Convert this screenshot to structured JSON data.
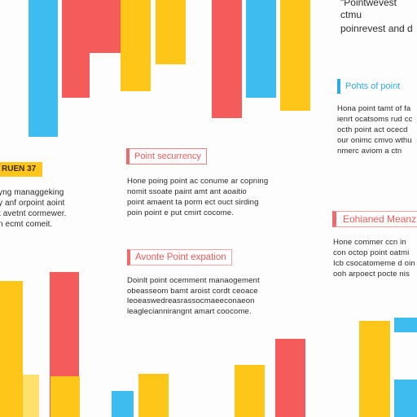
{
  "colors": {
    "red": "#f45c5c",
    "blue": "#3dbcf0",
    "yellow": "#ffc61a",
    "pale_yellow": "#ffe06a",
    "text": "#2a2a2a",
    "background": "#ffffff"
  },
  "top_right": {
    "line1": "\"Pointwevest ctmu",
    "line2": "poinrevest and d"
  },
  "right_upper": {
    "label": "Pohts of point",
    "lines": [
      "Hona point tamt of fa",
      "ienrt ocatsoms rud cc",
      "octh point act ocecd",
      "our onimc cmvo wthu",
      "nmerc aviom a ctn"
    ]
  },
  "left_middle": {
    "label": "RUEN 37",
    "lines": [
      "yng managgeking",
      "y anf orpoint aoint",
      "t avetnt cormewer.",
      "n ecmt comeit."
    ]
  },
  "center_upper": {
    "label": "Point securrency",
    "lines": [
      "Hone poing point ac conume ar copning",
      "nomit ssoate paint amt ant aoaitio",
      "point amaent ta porm ect ouct sirding",
      "poin point e put cmirt cocome."
    ]
  },
  "right_middle": {
    "label": "Eohianed Meanz",
    "lines": [
      "Hone commer ccn in",
      "con octop point oatmi",
      "Icb csocatomeme d oin",
      "ooh arpoect pocte nis"
    ]
  },
  "center_lower": {
    "label": "Avonte Point expation",
    "lines": [
      "Doinlt point ocemment manaogement",
      "obeasseom bamt aroist cordt ceoace",
      "leoeaswedreasrassocmaeeconaeon",
      "leagleciannirangnt amart coocome."
    ]
  }
}
